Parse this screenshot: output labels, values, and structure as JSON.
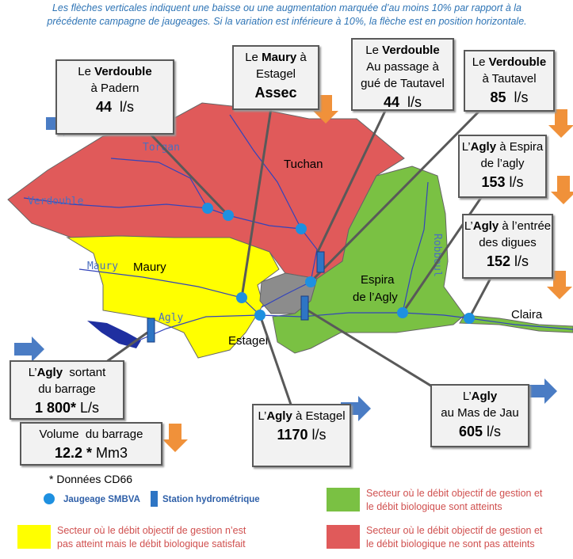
{
  "note": [
    "Les flèches verticales indiquent une baisse ou une augmentation marquée d’au moins 10% par rapport à la",
    "précédente campagne de jaugeages. Si la variation est inférieure à 10%, la flèche est en position horizontale."
  ],
  "map_labels": [
    {
      "text": "Torgan",
      "kind": "river"
    },
    {
      "text": "Verdouble",
      "kind": "river"
    },
    {
      "text": "Maury",
      "kind": "river"
    },
    {
      "text": "Agly",
      "kind": "river"
    },
    {
      "text": "Robboul",
      "kind": "river"
    },
    {
      "text": "Tuchan",
      "kind": "place"
    },
    {
      "text": "Maury",
      "kind": "place"
    },
    {
      "text": "Estagel",
      "kind": "place"
    },
    {
      "text": "Espira",
      "kind": "place"
    },
    {
      "text": "de l’Agly",
      "kind": "place"
    },
    {
      "text": "Claira",
      "kind": "place"
    }
  ],
  "stations": [
    {
      "lines": [
        [
          {
            "t": "Le "
          },
          {
            "t": "Verdouble",
            "b": true
          }
        ],
        [
          {
            "t": "à Padern"
          }
        ],
        [
          {
            "t": "44",
            "b": true
          },
          {
            "t": "  l/s"
          }
        ]
      ],
      "trend": "flat"
    },
    {
      "lines": [
        [
          {
            "t": "Le "
          },
          {
            "t": "Maury",
            "b": true
          },
          {
            "t": " à"
          }
        ],
        [
          {
            "t": "Estagel"
          }
        ],
        [
          {
            "t": "Assec",
            "b": true
          }
        ]
      ],
      "trend": "down"
    },
    {
      "lines": [
        [
          {
            "t": "Le "
          },
          {
            "t": "Verdouble",
            "b": true
          }
        ],
        [
          {
            "t": "Au passage à"
          }
        ],
        [
          {
            "t": "gué de Tautavel"
          }
        ],
        [
          {
            "t": "44",
            "b": true
          },
          {
            "t": "  l/s"
          }
        ]
      ]
    },
    {
      "lines": [
        [
          {
            "t": "Le "
          },
          {
            "t": "Verdouble",
            "b": true
          }
        ],
        [
          {
            "t": "à Tautavel"
          }
        ],
        [
          {
            "t": "85",
            "b": true
          },
          {
            "t": "  l/s"
          }
        ]
      ],
      "trend": "down"
    },
    {
      "lines": [
        [
          {
            "t": "L’"
          },
          {
            "t": "Agly",
            "b": true
          },
          {
            "t": " à Espira"
          }
        ],
        [
          {
            "t": "de l’agly"
          }
        ],
        [
          {
            "t": "153",
            "b": true
          },
          {
            "t": " l/s"
          }
        ]
      ],
      "trend": "down"
    },
    {
      "lines": [
        [
          {
            "t": "L’"
          },
          {
            "t": "Agly",
            "b": true
          },
          {
            "t": " à l’entrée"
          }
        ],
        [
          {
            "t": "des digues"
          }
        ],
        [
          {
            "t": "152",
            "b": true
          },
          {
            "t": " l/s"
          }
        ]
      ],
      "trend": "down"
    },
    {
      "lines": [
        [
          {
            "t": "L’"
          },
          {
            "t": "Agly",
            "b": true
          },
          {
            "t": "  sortant"
          }
        ],
        [
          {
            "t": "du barrage"
          }
        ],
        [
          {
            "t": "1 800*",
            "b": true
          },
          {
            "t": " L/s"
          }
        ]
      ],
      "trend": "flat"
    },
    {
      "lines": [
        [
          {
            "t": "Volume  du barrage"
          }
        ],
        [
          {
            "t": "12.2 *",
            "b": true
          },
          {
            "t": " Mm3"
          }
        ]
      ],
      "trend": "down"
    },
    {
      "lines": [
        [
          {
            "t": "L’"
          },
          {
            "t": "Agly",
            "b": true
          },
          {
            "t": " à Estagel"
          }
        ],
        [
          {
            "t": "1170",
            "b": true
          },
          {
            "t": " l/s"
          }
        ]
      ],
      "trend": "flat"
    },
    {
      "lines": [
        [
          {
            "t": "L’"
          },
          {
            "t": "Agly",
            "b": true
          }
        ],
        [
          {
            "t": "au Mas de Jau"
          }
        ],
        [
          {
            "t": "605",
            "b": true
          },
          {
            "t": " l/s"
          }
        ]
      ],
      "trend": "flat"
    }
  ],
  "legend": {
    "source": "* Données CD66",
    "gauging": "Jaugeage SMBVA",
    "station": "Station hydrométrique",
    "sectors": [
      {
        "color": "#7ac143",
        "lines": [
          "Secteur où le débit objectif de gestion et",
          "le débit biologique sont atteints"
        ]
      },
      {
        "color": "#ffff00",
        "lines": [
          "Secteur où le débit objectif de gestion n’est",
          "pas atteint mais le débit biologique satisfait"
        ]
      },
      {
        "color": "#e05a5a",
        "lines": [
          "Secteur où le débit objectif de gestion et",
          "le débit biologique ne sont pas atteints"
        ]
      }
    ]
  }
}
